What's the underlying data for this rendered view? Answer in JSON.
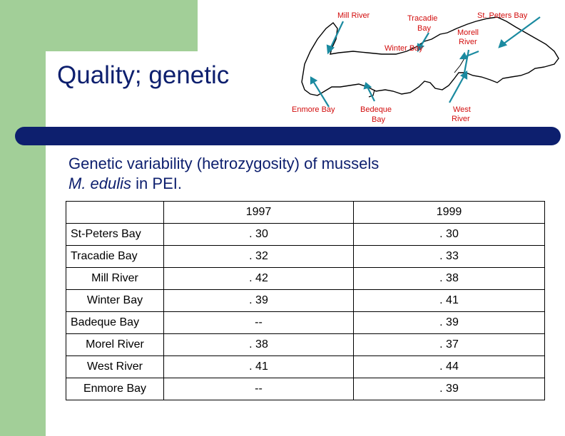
{
  "slide": {
    "title": "Quality; genetic",
    "subtitle_line1": "Genetic variability (hetrozygosity) of mussels",
    "subtitle_species": "M. edulis",
    "subtitle_rest": " in PEI."
  },
  "map": {
    "labels": {
      "mill_river": "Mill River",
      "tracadie_bay_1": "Tracadie",
      "tracadie_bay_2": "Bay",
      "st_peters_bay": "St. Peters Bay",
      "morell_river_1": "Morell",
      "morell_river_2": "River",
      "winter_bay": "Winter Bay",
      "enmore_bay": "Enmore Bay",
      "bedeque_bay_1": "Bedeque",
      "bedeque_bay_2": "Bay",
      "west_river_1": "West",
      "west_river_2": "River"
    },
    "colors": {
      "label": "#d20c0c",
      "arrow": "#1a8aa0",
      "coast": "#000000"
    }
  },
  "table": {
    "headers": [
      "",
      "1997",
      "1999"
    ],
    "rows": [
      {
        "site": "St-Peters Bay",
        "y1997": ". 30",
        "y1999": ". 30"
      },
      {
        "site": "Tracadie Bay",
        "y1997": ". 32",
        "y1999": ". 33"
      },
      {
        "site": "Mill River",
        "y1997": ". 42",
        "y1999": ". 38"
      },
      {
        "site": "Winter Bay",
        "y1997": ". 39",
        "y1999": ". 41"
      },
      {
        "site": "Badeque Bay",
        "y1997": "--",
        "y1999": ". 39"
      },
      {
        "site": "Morel River",
        "y1997": ". 38",
        "y1999": ". 37"
      },
      {
        "site": "West River",
        "y1997": ". 41",
        "y1999": ". 44"
      },
      {
        "site": "Enmore Bay",
        "y1997": "--",
        "y1999": ". 39"
      }
    ]
  },
  "colors": {
    "accent_green": "#a2cf98",
    "navy": "#0d1f6e"
  }
}
